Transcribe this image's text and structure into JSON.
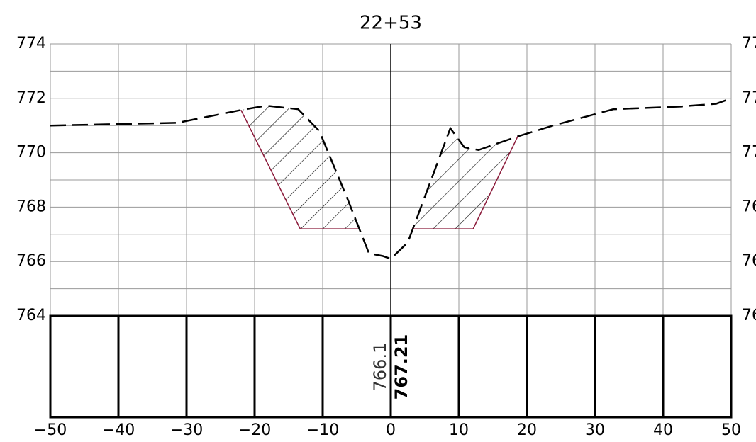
{
  "chart_data": {
    "type": "line",
    "title": "22+53",
    "xlim": [
      -50,
      50
    ],
    "xticks": [
      {
        "value": -50,
        "label": "−50"
      },
      {
        "value": -40,
        "label": "−40"
      },
      {
        "value": -30,
        "label": "−30"
      },
      {
        "value": -20,
        "label": "−20"
      },
      {
        "value": -10,
        "label": "−10"
      },
      0,
      10,
      20,
      30,
      40,
      50
    ],
    "ylim": [
      764,
      774
    ],
    "yticks": [
      764,
      766,
      768,
      770,
      772,
      774
    ],
    "y_minor_ticks": [
      765,
      767,
      769,
      771,
      773
    ],
    "grid": true,
    "series": [
      {
        "color": "#000000",
        "dash": true,
        "x": [
          -50,
          -31.35,
          -22,
          -18.3,
          -13.6,
          -10.5,
          -6.35,
          -3.2,
          -1.15,
          0,
          2.5,
          8.75,
          10.8,
          12.9,
          18.65,
          23.85,
          32.7,
          42.6,
          47.8,
          50
        ],
        "values": [
          771.0,
          771.1,
          771.57,
          771.73,
          771.6,
          770.8,
          768.3,
          766.3,
          766.2,
          766.1,
          766.7,
          770.9,
          770.2,
          770.1,
          770.6,
          771.0,
          771.6,
          771.7,
          771.8,
          772.0
        ]
      },
      {
        "color": "#8b1a3a",
        "dash": false,
        "x": [
          -22,
          -13.3,
          -4.8,
          null,
          3.2,
          12.1,
          18.65
        ],
        "values": [
          771.57,
          767.2,
          767.2,
          null,
          767.2,
          767.2,
          770.6
        ]
      }
    ],
    "ground_label": "766.1",
    "design_label": "767.21"
  }
}
